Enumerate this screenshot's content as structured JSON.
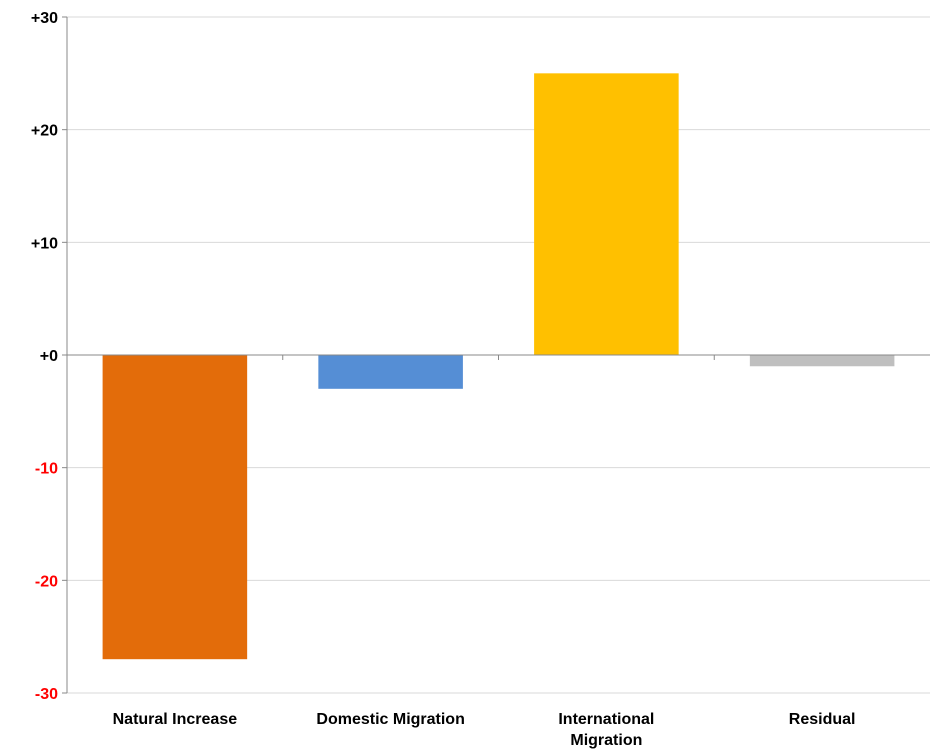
{
  "chart_data": {
    "type": "bar",
    "title": "",
    "xlabel": "",
    "ylabel": "",
    "categories": [
      [
        "Natural Increase"
      ],
      [
        "Domestic Migration"
      ],
      [
        "International",
        "Migration"
      ],
      [
        "Residual"
      ]
    ],
    "values": [
      -27,
      -3,
      25,
      -1
    ],
    "ylim": [
      -30,
      30
    ],
    "y_ticks": [
      {
        "value": 30,
        "label": "+30"
      },
      {
        "value": 20,
        "label": "+20"
      },
      {
        "value": 10,
        "label": "+10"
      },
      {
        "value": 0,
        "label": "+0"
      },
      {
        "value": -10,
        "label": "-10"
      },
      {
        "value": -20,
        "label": "-20"
      },
      {
        "value": -30,
        "label": "-30"
      }
    ],
    "grid": true,
    "legend": "none",
    "colors": {
      "bars": [
        "#e36c0a",
        "#558ed5",
        "#ffc000",
        "#bfbfbf"
      ],
      "positive_tick": "#000000",
      "negative_tick": "#ff0000",
      "gridline": "#d9d9d9",
      "axis": "#888888"
    }
  }
}
